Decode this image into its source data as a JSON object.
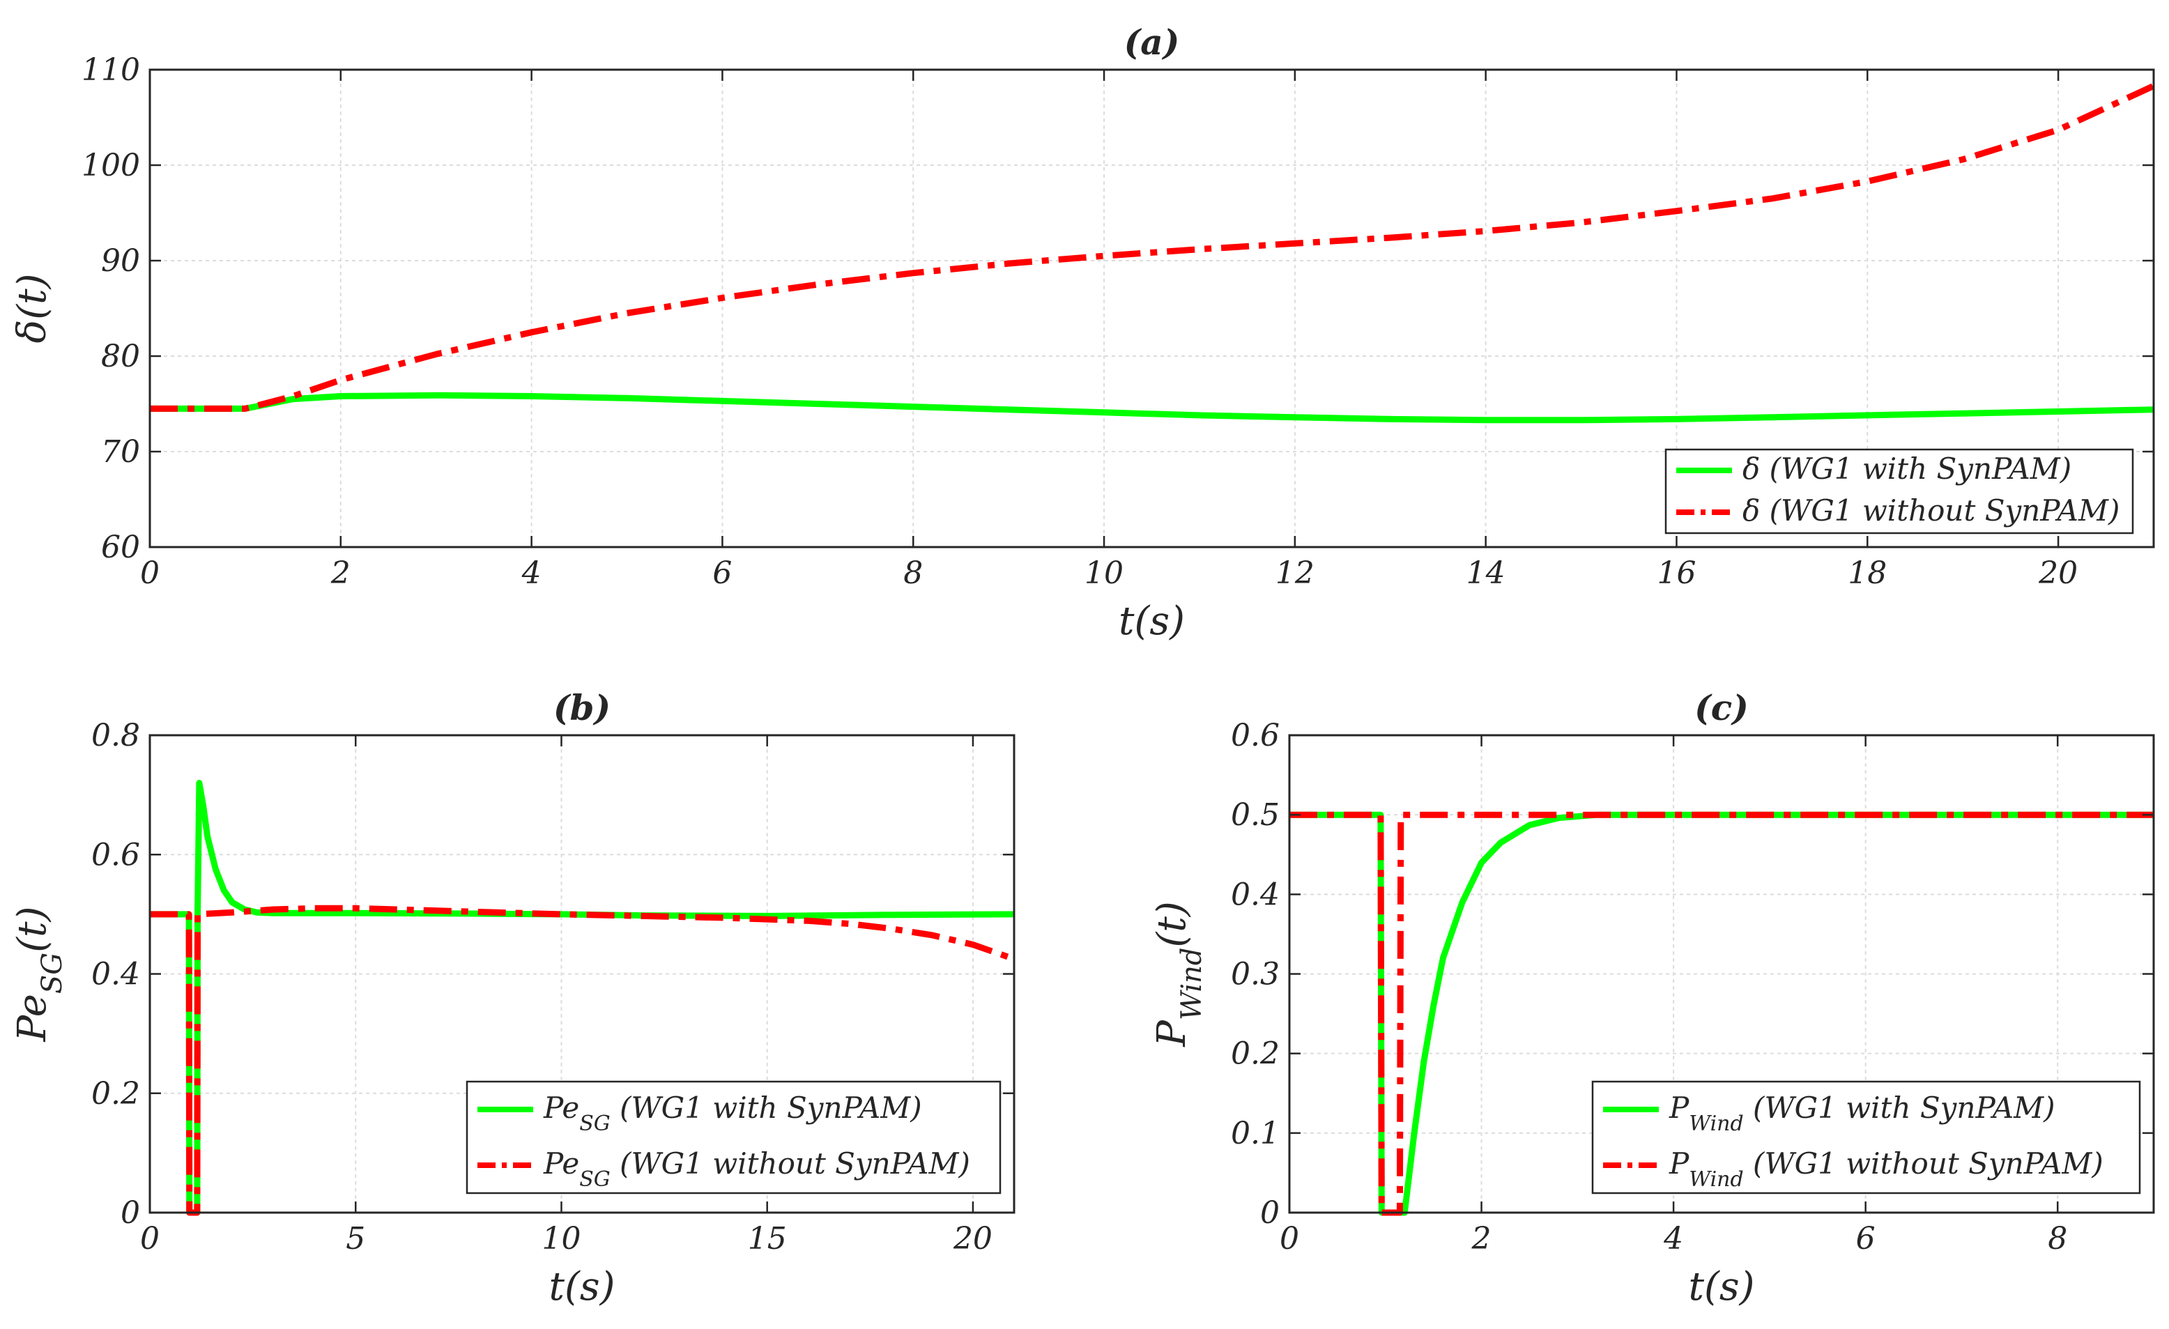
{
  "chart_data": [
    {
      "panel": "a",
      "type": "line",
      "title": "(a)",
      "xlabel": "t(s)",
      "ylabel_parts": [
        "δ(t)"
      ],
      "xlim": [
        0,
        21
      ],
      "ylim": [
        60,
        110
      ],
      "xticks": [
        0,
        2,
        4,
        6,
        8,
        10,
        12,
        14,
        16,
        18,
        20
      ],
      "yticks": [
        60,
        70,
        80,
        90,
        100,
        110
      ],
      "legend_position": "bottom-right",
      "series": [
        {
          "name": "δ (WG1 with SynPAM)",
          "name_parts": [
            "δ (WG1 with SynPAM)"
          ],
          "color": "#00ff00",
          "style": "solid",
          "x": [
            0,
            1,
            1.5,
            2,
            3,
            4,
            5,
            6,
            7,
            8,
            9,
            10,
            11,
            12,
            13,
            14,
            15,
            16,
            17,
            18,
            19,
            20,
            21
          ],
          "y": [
            74.5,
            74.5,
            75.5,
            75.8,
            75.9,
            75.8,
            75.6,
            75.3,
            75.0,
            74.7,
            74.4,
            74.1,
            73.8,
            73.6,
            73.4,
            73.3,
            73.3,
            73.4,
            73.6,
            73.8,
            74.0,
            74.2,
            74.4
          ]
        },
        {
          "name": "δ (WG1 without SynPAM)",
          "name_parts": [
            "δ (WG1 without SynPAM)"
          ],
          "color": "#ff0000",
          "style": "dashdot",
          "x": [
            0,
            1,
            1.5,
            2,
            3,
            4,
            5,
            6,
            7,
            8,
            9,
            10,
            11,
            12,
            13,
            14,
            15,
            16,
            17,
            18,
            19,
            20,
            21
          ],
          "y": [
            74.5,
            74.5,
            75.8,
            77.5,
            80.2,
            82.5,
            84.5,
            86.1,
            87.5,
            88.7,
            89.7,
            90.5,
            91.2,
            91.8,
            92.4,
            93.1,
            94.0,
            95.2,
            96.5,
            98.3,
            100.6,
            103.7,
            108.3
          ]
        }
      ]
    },
    {
      "panel": "b",
      "type": "line",
      "title": "(b)",
      "xlabel": "t(s)",
      "ylabel_parts": [
        "Pe",
        "SG",
        "(t)"
      ],
      "xlim": [
        0,
        21
      ],
      "ylim": [
        0,
        0.8
      ],
      "xticks": [
        0,
        5,
        10,
        15,
        20
      ],
      "yticks": [
        0,
        0.2,
        0.4,
        0.6,
        0.8
      ],
      "legend_position": "bottom-right",
      "series": [
        {
          "name": "Pe_SG (WG1 with SynPAM)",
          "name_parts": [
            "Pe",
            "SG",
            " (WG1 with SynPAM)"
          ],
          "color": "#00ff00",
          "style": "solid",
          "x": [
            0,
            0.95,
            0.96,
            1.15,
            1.16,
            1.2,
            1.3,
            1.4,
            1.6,
            1.8,
            2.0,
            2.3,
            2.6,
            3,
            5,
            8,
            10,
            12,
            15,
            18,
            21
          ],
          "y": [
            0.5,
            0.5,
            0.0,
            0.0,
            0.5,
            0.72,
            0.68,
            0.63,
            0.575,
            0.54,
            0.52,
            0.508,
            0.503,
            0.502,
            0.502,
            0.501,
            0.5,
            0.498,
            0.497,
            0.499,
            0.5
          ]
        },
        {
          "name": "Pe_SG (WG1 without SynPAM)",
          "name_parts": [
            "Pe",
            "SG",
            " (WG1 without SynPAM)"
          ],
          "color": "#ff0000",
          "style": "dashdot",
          "x": [
            0,
            0.95,
            0.96,
            1.15,
            1.16,
            2,
            3,
            4,
            5,
            6,
            8,
            10,
            12,
            14,
            16,
            17,
            18,
            19,
            20,
            21
          ],
          "y": [
            0.5,
            0.5,
            0.0,
            0.0,
            0.5,
            0.503,
            0.508,
            0.51,
            0.51,
            0.508,
            0.504,
            0.5,
            0.497,
            0.494,
            0.489,
            0.484,
            0.476,
            0.465,
            0.449,
            0.425
          ]
        }
      ]
    },
    {
      "panel": "c",
      "type": "line",
      "title": "(c)",
      "xlabel": "t(s)",
      "ylabel_parts": [
        "P",
        "Wind",
        "(t)"
      ],
      "xlim": [
        0,
        9
      ],
      "ylim": [
        0,
        0.6
      ],
      "xticks": [
        0,
        2,
        4,
        6,
        8
      ],
      "yticks": [
        0,
        0.1,
        0.2,
        0.3,
        0.4,
        0.5,
        0.6
      ],
      "legend_position": "bottom-right",
      "series": [
        {
          "name": "P_Wind (WG1 with SynPAM)",
          "name_parts": [
            "P",
            "Wind",
            " (WG1 with SynPAM)"
          ],
          "color": "#00ff00",
          "style": "solid",
          "x": [
            0,
            0.95,
            0.96,
            1.2,
            1.3,
            1.4,
            1.5,
            1.6,
            1.8,
            2.0,
            2.2,
            2.5,
            2.8,
            3.2,
            9
          ],
          "y": [
            0.5,
            0.5,
            0.0,
            0.0,
            0.1,
            0.19,
            0.26,
            0.32,
            0.39,
            0.44,
            0.465,
            0.487,
            0.496,
            0.5,
            0.5
          ]
        },
        {
          "name": "P_Wind (WG1 without SynPAM)",
          "name_parts": [
            "P",
            "Wind",
            " (WG1 without SynPAM)"
          ],
          "color": "#ff0000",
          "style": "dashdot",
          "x": [
            0,
            0.95,
            0.96,
            1.15,
            1.16,
            9
          ],
          "y": [
            0.5,
            0.5,
            0.0,
            0.0,
            0.5,
            0.5
          ]
        }
      ]
    }
  ]
}
